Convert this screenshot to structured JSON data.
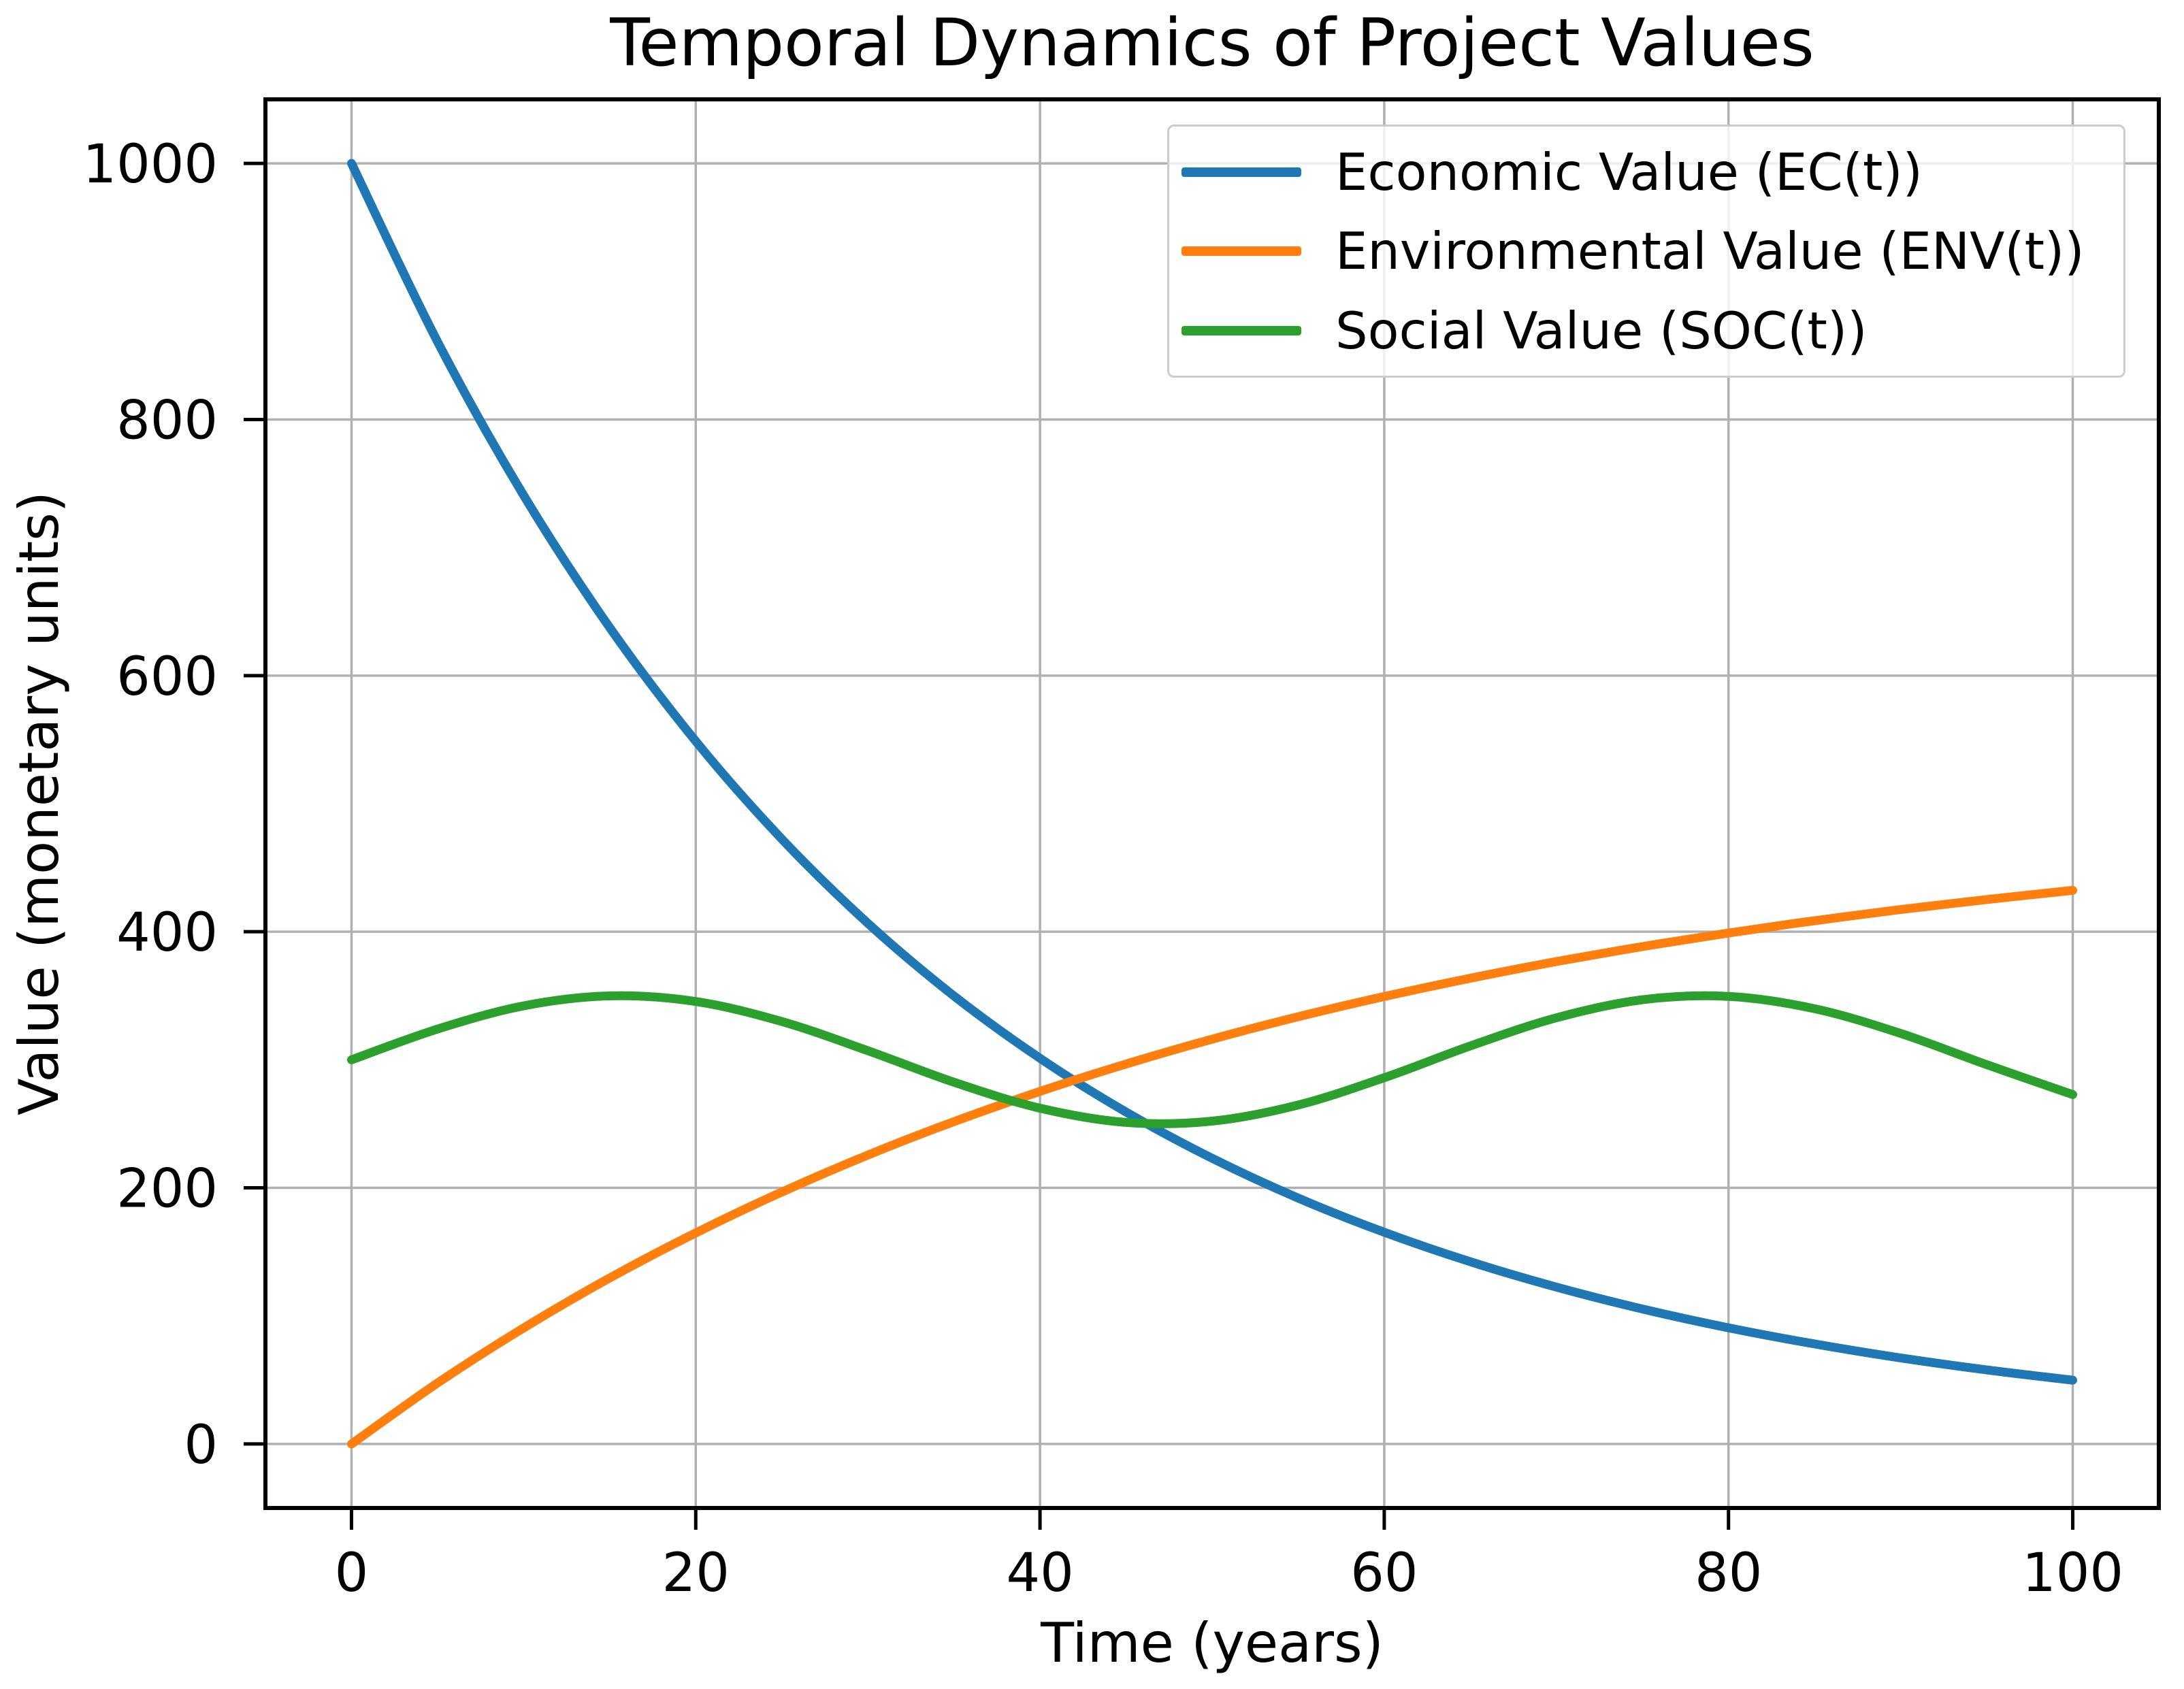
{
  "chart_data": {
    "type": "line",
    "title": "Temporal Dynamics of Project Values",
    "xlabel": "Time (years)",
    "ylabel": "Value (monetary units)",
    "xlim": [
      -5,
      105
    ],
    "ylim": [
      -50,
      1050
    ],
    "xticks": [
      0,
      20,
      40,
      60,
      80,
      100
    ],
    "yticks": [
      0,
      200,
      400,
      600,
      800,
      1000
    ],
    "grid": true,
    "grid_color": "#b0b0b0",
    "axis_color": "#000000",
    "legend_position": "upper right",
    "legend_border_color": "#cccccc",
    "x": [
      0,
      5,
      10,
      15,
      20,
      25,
      30,
      35,
      40,
      45,
      50,
      55,
      60,
      65,
      70,
      75,
      80,
      85,
      90,
      95,
      100
    ],
    "series": [
      {
        "id": "economic",
        "name": "Economic Value (EC(t))",
        "color": "#1f77b4",
        "values": [
          1000,
          860.7,
          740.8,
          637.6,
          548.8,
          472.4,
          406.6,
          349.9,
          301.2,
          259.2,
          223.1,
          192.0,
          165.3,
          142.3,
          122.5,
          105.4,
          90.7,
          78.1,
          67.2,
          57.8,
          49.8
        ]
      },
      {
        "id": "environmental",
        "name": "Environmental Value (ENV(t))",
        "color": "#ff7f0e",
        "values": [
          0,
          47.6,
          90.6,
          129.6,
          164.8,
          196.7,
          225.6,
          251.7,
          275.3,
          296.7,
          316.1,
          333.6,
          349.4,
          363.7,
          376.7,
          388.4,
          399.0,
          408.6,
          417.3,
          425.1,
          432.3
        ]
      },
      {
        "id": "social",
        "name": "Social Value (SOC(t))",
        "color": "#2ca02c",
        "values": [
          300,
          324.0,
          342.1,
          349.9,
          345.5,
          329.9,
          307.1,
          282.5,
          262.2,
          251.1,
          252.1,
          264.7,
          286.0,
          310.8,
          332.8,
          346.9,
          349.5,
          339.9,
          320.6,
          296.2,
          272.8
        ]
      }
    ]
  }
}
